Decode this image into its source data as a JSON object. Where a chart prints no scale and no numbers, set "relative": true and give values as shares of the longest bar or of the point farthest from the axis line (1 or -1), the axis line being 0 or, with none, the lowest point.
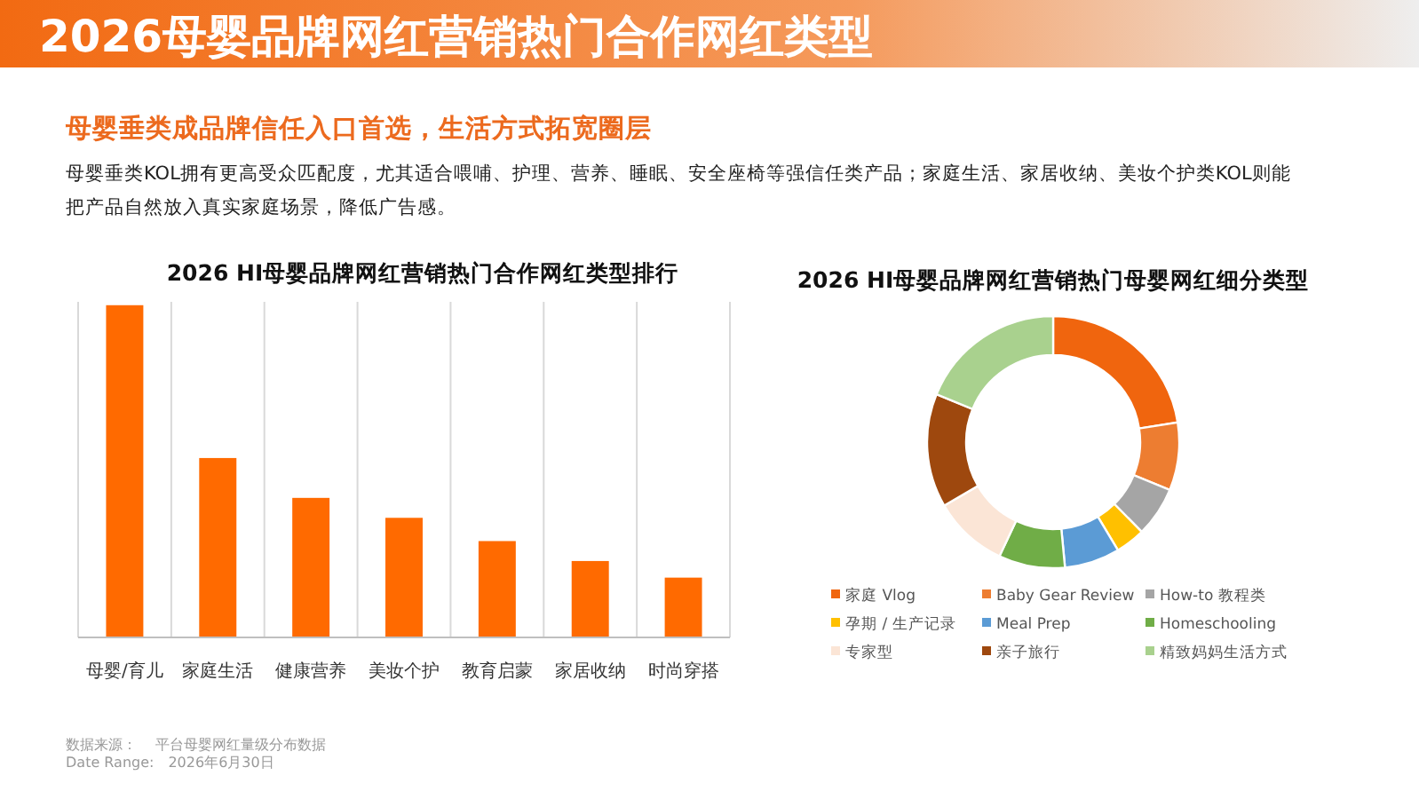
{
  "chart_data": [
    {
      "type": "other",
      "title": "2026母婴品牌网红营销热门合作网红类型",
      "subtitle": "母婴垂类成品牌信任入口首选，生活方式拓宽圈层",
      "annotations": [
        "母婴垂类KOL拥有更高受众匹配度，尤其适合喂哺、护理、营养、睡眠、安全座椅等强信任类产品；家庭生活、家居收纳、美妆个护类KOL则能",
        "把产品自然放入真实家庭场景，降低广告感。",
        "数据来源：　 平台母婴网红量级分布数据",
        "Date Range:　2026年6月30日"
      ]
    },
    {
      "type": "bar",
      "title": "2026 HI母婴品牌网红营销热门合作网红类型排行",
      "relative": true,
      "categories": [
        "母婴/育儿",
        "家庭生活",
        "健康营养",
        "美妆个护",
        "教育启蒙",
        "家居收纳",
        "时尚穿搭"
      ],
      "values": [
        1,
        0.54,
        0.42,
        0.36,
        0.29,
        0.23,
        0.18
      ],
      "color": "#ff6a00",
      "grid": "x"
    },
    {
      "type": "donut",
      "title": "2026 HI母婴品牌网红营销热门母婴网红细分类型",
      "legend": "bottom",
      "categories": [
        "家庭 Vlog",
        "Baby Gear Review",
        "How-to 教程类",
        "孕期 / 生产记录",
        "Meal Prep",
        "Homeschooling",
        "专家型",
        "亲子旅行",
        "精致妈妈生活方式"
      ],
      "values": [
        22.5,
        8.7,
        6.4,
        3.8,
        7.1,
        8.5,
        9.6,
        14.6,
        18.8
      ],
      "colors": [
        "#f0650e",
        "#ed7d31",
        "#a5a5a5",
        "#ffc000",
        "#5b9bd5",
        "#70ad47",
        "#fbe5d6",
        "#9e480e",
        "#a9d18e"
      ]
    }
  ]
}
